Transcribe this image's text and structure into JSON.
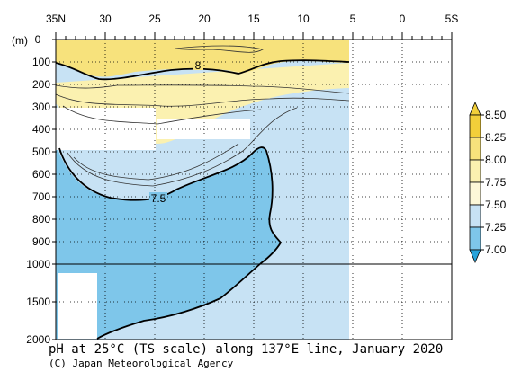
{
  "chart_data": {
    "type": "contour",
    "title": "pH at 25°C (TS scale) along 137°E line, January 2020",
    "credit": "(C) Japan Meteorological Agency",
    "x_axis": {
      "tick_labels": [
        "35N",
        "30",
        "25",
        "20",
        "15",
        "10",
        "5",
        "0",
        "5S"
      ],
      "range": [
        "35N",
        "5S"
      ]
    },
    "y_axis": {
      "unit_label": "(m)",
      "tick_labels": [
        "0",
        "100",
        "200",
        "300",
        "400",
        "500",
        "600",
        "700",
        "800",
        "900",
        "1000",
        "1500",
        "2000"
      ],
      "ylim": [
        0,
        2000
      ],
      "scale_change_at": 1000
    },
    "colorbar": {
      "levels": [
        "8.50",
        "8.25",
        "8.00",
        "7.75",
        "7.50",
        "7.25",
        "7.00"
      ],
      "colors": [
        "#f2cf3a",
        "#f7e27c",
        "#fbf1b0",
        "#fdf8d8",
        "#c7e2f4",
        "#7ec6ea",
        "#27a3db"
      ]
    },
    "contour_labels": [
      "8",
      "7.5"
    ],
    "data_extent": {
      "lat_north": 35,
      "lat_south": 5
    },
    "regions": [
      {
        "range": "> 8.0",
        "color": "#f7e27c",
        "where": "upper ~100 m, 35N–5N"
      },
      {
        "range": "7.75–8.0",
        "color": "#fbf1b0",
        "where": "~100–300 m, northern part"
      },
      {
        "range": "7.5–7.75",
        "color": "#c7e2f4",
        "where": "thermocline and south of 15N down to 2000 m"
      },
      {
        "range": "< 7.5",
        "color": "#7ec6ea",
        "where": "~500–2000 m, 35N–15N"
      }
    ],
    "grid": true
  }
}
